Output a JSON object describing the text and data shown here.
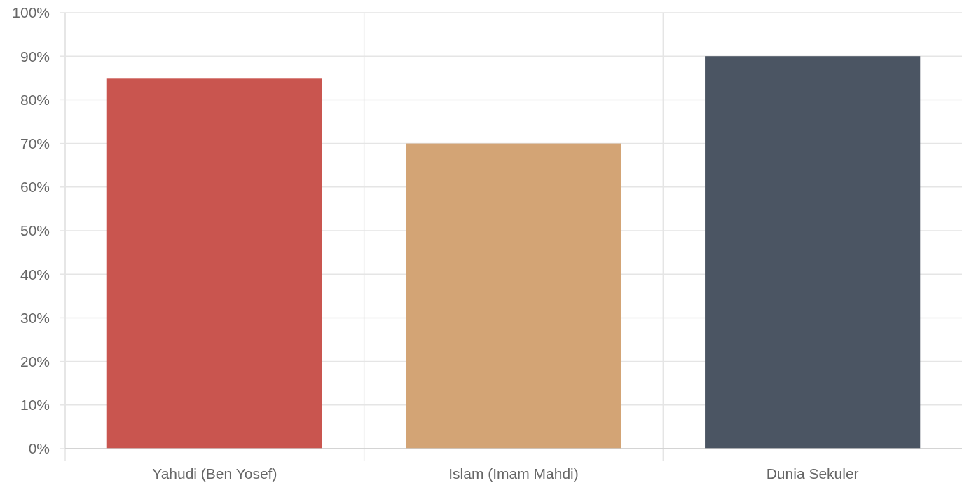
{
  "chart_data": {
    "type": "bar",
    "categories": [
      "Yahudi (Ben Yosef)",
      "Islam (Imam Mahdi)",
      "Dunia Sekuler"
    ],
    "values": [
      85,
      70,
      90
    ],
    "colors": [
      "#c9554f",
      "#d3a475",
      "#4b5563"
    ],
    "ylim": [
      0,
      100
    ],
    "yticks": [
      {
        "value": 0,
        "label": "0%"
      },
      {
        "value": 10,
        "label": "10%"
      },
      {
        "value": 20,
        "label": "20%"
      },
      {
        "value": 30,
        "label": "30%"
      },
      {
        "value": 40,
        "label": "40%"
      },
      {
        "value": 50,
        "label": "50%"
      },
      {
        "value": 60,
        "label": "60%"
      },
      {
        "value": 70,
        "label": "70%"
      },
      {
        "value": 80,
        "label": "80%"
      },
      {
        "value": 90,
        "label": "90%"
      },
      {
        "value": 100,
        "label": "100%"
      }
    ],
    "grid": true
  }
}
